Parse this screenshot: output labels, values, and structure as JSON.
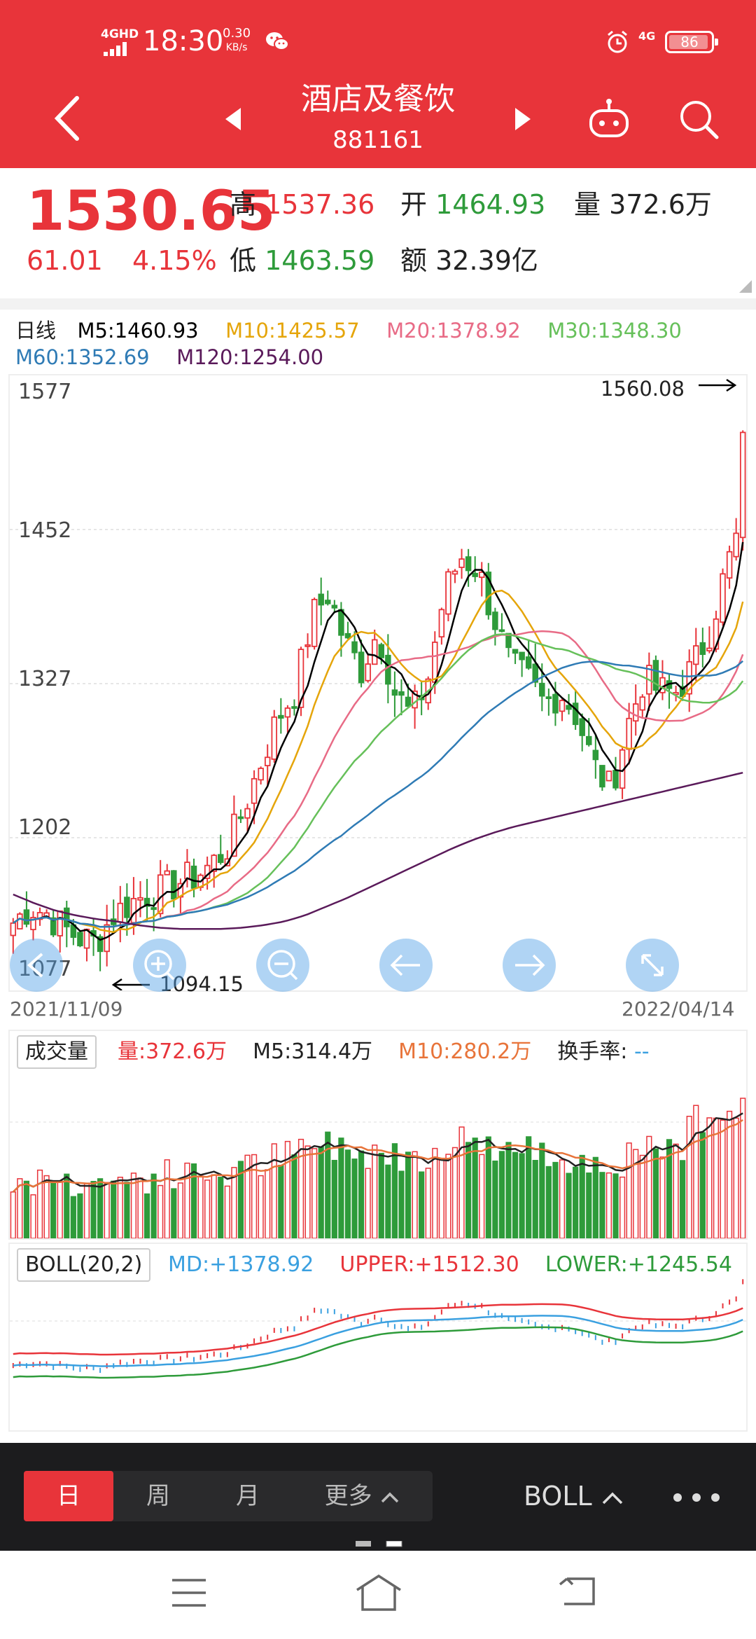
{
  "status_bar": {
    "network": "4GHD",
    "time": "18:30",
    "speed_value": "0.30",
    "speed_unit": "KB/s",
    "network2": "4G",
    "battery": "86"
  },
  "header": {
    "title": "酒店及餐饮",
    "code": "881161"
  },
  "quote": {
    "price": "1530.65",
    "change": "61.01",
    "change_pct": "4.15%",
    "high_label": "高",
    "high": "1537.36",
    "open_label": "开",
    "open": "1464.93",
    "volume_label": "量",
    "volume": "372.6万",
    "low_label": "低",
    "low": "1463.59",
    "amount_label": "额",
    "amount": "32.39亿"
  },
  "ma_legend": {
    "period": "日线",
    "m5": "M5:1460.93",
    "m10": "M10:1425.57",
    "m20": "M20:1378.92",
    "m30": "M30:1348.30",
    "m60": "M60:1352.69",
    "m120": "M120:1254.00"
  },
  "main_chart": {
    "y_labels": [
      "1577",
      "1452",
      "1327",
      "1202",
      "1077"
    ],
    "max_label": "1560.08",
    "min_label": "1094.15",
    "date_start": "2021/11/09",
    "date_end": "2022/04/14"
  },
  "volume_legend": {
    "title": "成交量",
    "vol": "量:372.6万",
    "m5": "M5:314.4万",
    "m10": "M10:280.2万",
    "turnover": "换手率:",
    "turnover_value": "--"
  },
  "boll_legend": {
    "title": "BOLL(20,2)",
    "md": "MD:+1378.92",
    "upper": "UPPER:+1512.30",
    "lower": "LOWER:+1245.54"
  },
  "tabs": {
    "day": "日",
    "week": "周",
    "month": "月",
    "more": "更多",
    "indicator": "BOLL"
  },
  "colors": {
    "accent": "#e8343a",
    "up": "#e8343a",
    "down": "#2e9b3a",
    "m5": "#000000",
    "m10": "#e5a50a",
    "m20": "#e86b86",
    "m30": "#66c05a",
    "m60": "#2f7bb5",
    "m120": "#5a1a5a"
  },
  "chart_data": {
    "type": "candlestick",
    "x_range": [
      "2021/11/09",
      "2022/04/14"
    ],
    "ylim": [
      1077,
      1577
    ],
    "y_ticks": [
      1577,
      1452,
      1327,
      1202,
      1077
    ],
    "high_marker": 1560.08,
    "low_marker": 1094.15,
    "m5_trend": [
      1132,
      1145,
      1140,
      1128,
      1120,
      1116,
      1138,
      1148,
      1155,
      1158,
      1165,
      1170,
      1180,
      1195,
      1228,
      1265,
      1300,
      1320,
      1380,
      1400,
      1360,
      1338,
      1370,
      1320,
      1300,
      1330,
      1400,
      1430,
      1420,
      1380,
      1340,
      1330,
      1310,
      1320,
      1300,
      1260,
      1240,
      1290,
      1330,
      1320,
      1320,
      1340,
      1370,
      1420,
      1460
    ],
    "m120_trend": [
      1155,
      1148,
      1142,
      1138,
      1135,
      1133,
      1130,
      1128,
      1127,
      1127,
      1127,
      1128,
      1130,
      1133,
      1138,
      1145,
      1152,
      1160,
      1168,
      1176,
      1184,
      1192,
      1199,
      1205,
      1210,
      1214,
      1218,
      1222,
      1226,
      1230,
      1234,
      1238,
      1242,
      1246,
      1250,
      1254
    ]
  }
}
